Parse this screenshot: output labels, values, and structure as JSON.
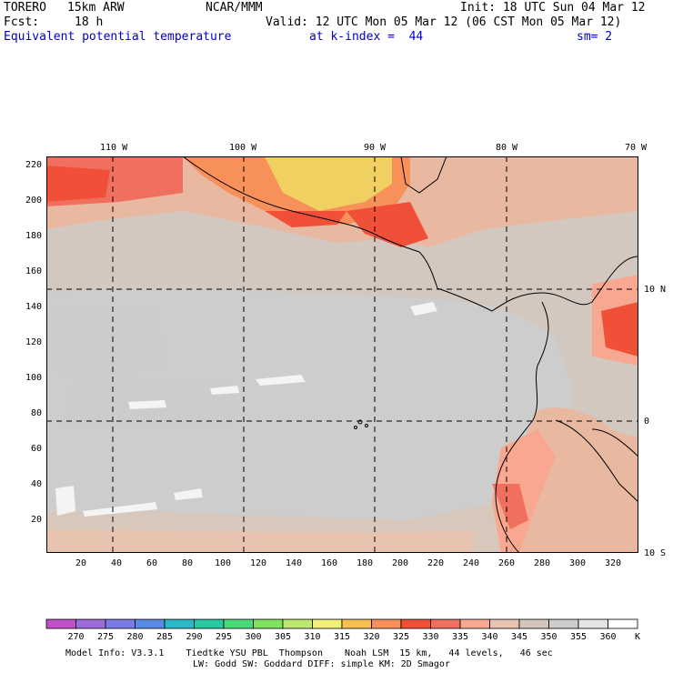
{
  "header": {
    "model": "TORERO",
    "resolution": "15km ARW",
    "org": "NCAR/MMM",
    "init": "Init: 18 UTC Sun 04 Mar 12",
    "fcst_label": "Fcst:",
    "fcst_value": "18 h",
    "valid": "Valid: 12 UTC Mon 05 Mar 12 (06 CST Mon 05 Mar 12)",
    "field": "Equivalent potential temperature",
    "level": "at k-index =  44",
    "smoothing": "sm= 2"
  },
  "map": {
    "top_lon_labels": [
      "110 W",
      "100 W",
      "90 W",
      "80 W",
      "70 W"
    ],
    "right_lat_labels": [
      "10 N",
      "0",
      "10 S"
    ],
    "y_grid_labels": [
      "220",
      "200",
      "180",
      "160",
      "140",
      "120",
      "100",
      "80",
      "60",
      "40",
      "20"
    ],
    "x_grid_labels": [
      "20",
      "40",
      "60",
      "80",
      "100",
      "120",
      "140",
      "160",
      "180",
      "200",
      "220",
      "240",
      "260",
      "280",
      "300",
      "320"
    ]
  },
  "colorbar": {
    "values": [
      "270",
      "275",
      "280",
      "285",
      "290",
      "295",
      "300",
      "305",
      "310",
      "315",
      "320",
      "325",
      "330",
      "335",
      "340",
      "345",
      "350",
      "355",
      "360"
    ],
    "unit": "K",
    "colors": [
      "#c050c8",
      "#9c6cd8",
      "#7a7ae8",
      "#5a8ae8",
      "#2ab8c8",
      "#2ac8a0",
      "#4ad878",
      "#80e060",
      "#bce870",
      "#f0f07a",
      "#f8c050",
      "#f8905a",
      "#f05038",
      "#f07060",
      "#f8a890",
      "#e8c4b0",
      "#d4c6bc",
      "#cccccc",
      "#e4e4e4",
      "#ffffff"
    ]
  },
  "footer": {
    "line1": "Model Info: V3.3.1    Tiedtke YSU PBL  Thompson    Noah LSM  15 km,   44 levels,   46 sec",
    "line2": "LW: Godd SW: Goddard DIFF: simple KM: 2D Smagor"
  }
}
